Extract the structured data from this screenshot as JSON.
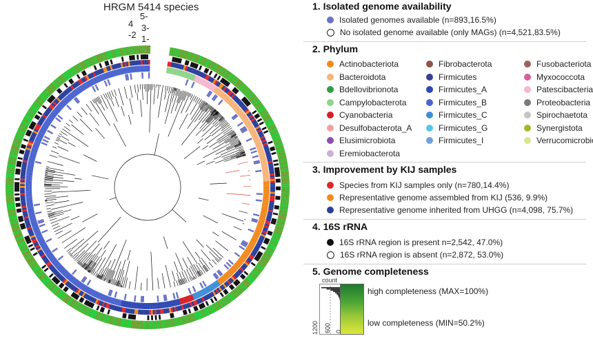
{
  "tree": {
    "title": "HRGM 5414 species",
    "ring_labels": [
      "5-",
      "4",
      "3-",
      "-2",
      "1-"
    ]
  },
  "legend": {
    "sec1": {
      "title": "1. Isolated genome availability",
      "items": [
        {
          "label": "Isolated genomes available (n=893,16.5%)",
          "color": "#6b73c7",
          "style": "filled"
        },
        {
          "label": "No isolated genome available (only MAGs) (n=4,521,83.5%)",
          "color": "#ffffff",
          "style": "open"
        }
      ]
    },
    "sec2": {
      "title": "2. Phylum",
      "columns": [
        [
          {
            "label": "Actinobacteriota",
            "color": "#f28a1e"
          },
          {
            "label": "Bacteroidota",
            "color": "#f6b57a"
          },
          {
            "label": "Bdellovibrionota",
            "color": "#2ea043"
          },
          {
            "label": "Campylobacterota",
            "color": "#8fd48a"
          },
          {
            "label": "Cyanobacteria",
            "color": "#d91f26"
          },
          {
            "label": "Desulfobacterota_A",
            "color": "#f4a0a0"
          },
          {
            "label": "Elusimicrobiota",
            "color": "#8a4fb0"
          },
          {
            "label": "Eremiobacterota",
            "color": "#c9b1dc"
          }
        ],
        [
          {
            "label": "Fibrobacterota",
            "color": "#8c5546"
          },
          {
            "label": "Firmicutes",
            "color": "#3a3f9a"
          },
          {
            "label": "Firmicutes_A",
            "color": "#2f48b4"
          },
          {
            "label": "Firmicutes_B",
            "color": "#4a64d0"
          },
          {
            "label": "Firmicutes_C",
            "color": "#3d8fd8"
          },
          {
            "label": "Firmicutes_G",
            "color": "#56c6e6"
          },
          {
            "label": "Firmicutes_I",
            "color": "#6f9fe0"
          }
        ],
        [
          {
            "label": "Fusobacteriota",
            "color": "#a0615a"
          },
          {
            "label": "Myxococcota",
            "color": "#d8609a"
          },
          {
            "label": "Patescibacteria",
            "color": "#f6b7cf"
          },
          {
            "label": "Proteobacteria",
            "color": "#7a7a7a"
          },
          {
            "label": "Spirochaetota",
            "color": "#c4c4c4"
          },
          {
            "label": "Synergistota",
            "color": "#a4b728"
          },
          {
            "label": "Verrucomicrobiota",
            "color": "#dde48a"
          }
        ]
      ]
    },
    "sec3": {
      "title": "3. Improvement by KIJ samples",
      "items": [
        {
          "label": "Species from KIJ samples only (n=780,14.4%)",
          "color": "#e0262c"
        },
        {
          "label": "Representative genome assembled from KIJ (536, 9.9%)",
          "color": "#f28a1e"
        },
        {
          "label": "Representative genome inherited from UHGG (n=4,098, 75.7%)",
          "color": "#2a3f9c"
        }
      ]
    },
    "sec4": {
      "title": "4. 16S rRNA",
      "items": [
        {
          "label": "16S rRNA region is present n=2,542, 47.0%)",
          "color": "#111111",
          "style": "filled"
        },
        {
          "label": "16S rRNA region is absent (n=2,872, 53.0%)",
          "color": "#ffffff",
          "style": "open"
        }
      ]
    },
    "sec5": {
      "title": "5. Genome completeness",
      "hist_label": "count",
      "axis_ticks": [
        "1200",
        "600",
        "0"
      ],
      "high_label": "high completeness (MAX=100%)",
      "low_label": "low completeness (MIN=50.2%)",
      "gradient_colors": [
        "#1e7a2e",
        "#e0e63a"
      ]
    }
  }
}
